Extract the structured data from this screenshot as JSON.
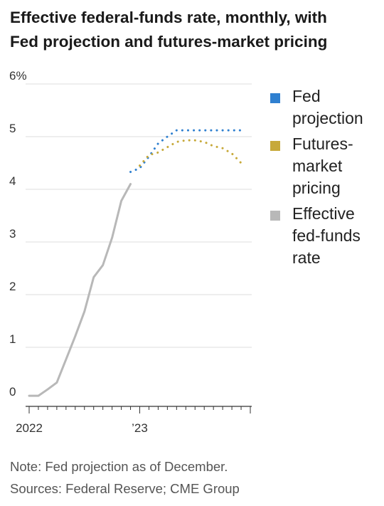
{
  "title_lines": [
    "Effective federal-funds rate, monthly, with",
    "Fed projection and futures-market pricing"
  ],
  "notes": {
    "note": "Note: Fed projection as of December.",
    "sources": "Sources: Federal Reserve; CME Group"
  },
  "legend": [
    {
      "label_lines": [
        "Fed",
        "projection"
      ],
      "color": "#2f80d0"
    },
    {
      "label_lines": [
        "Futures-",
        "market",
        "pricing"
      ],
      "color": "#c7a93a"
    },
    {
      "label_lines": [
        "Effective",
        "fed-funds",
        "rate"
      ],
      "color": "#b8b8b8"
    }
  ],
  "chart_data": {
    "type": "line",
    "title": "Effective federal-funds rate, monthly, with Fed projection and futures-market pricing",
    "xlabel": "",
    "ylabel": "",
    "ylim": [
      0,
      6
    ],
    "yticks": [
      {
        "value": 0,
        "label": "0"
      },
      {
        "value": 1,
        "label": "1"
      },
      {
        "value": 2,
        "label": "2"
      },
      {
        "value": 3,
        "label": "3"
      },
      {
        "value": 4,
        "label": "4"
      },
      {
        "value": 5,
        "label": "5"
      },
      {
        "value": 6,
        "label": "6%"
      }
    ],
    "xticks": [
      {
        "value": "2022-01",
        "label": "2022"
      },
      {
        "value": "2023-01",
        "label": "’23"
      }
    ],
    "xlim": [
      "2022-01",
      "2023-12"
    ],
    "grid": true,
    "legend_position": "right",
    "series": [
      {
        "name": "Effective fed-funds rate",
        "color": "#b8b8b8",
        "style": "solid",
        "points": [
          [
            "2022-01",
            0.08
          ],
          [
            "2022-02",
            0.08
          ],
          [
            "2022-03",
            0.2
          ],
          [
            "2022-04",
            0.33
          ],
          [
            "2022-05",
            0.77
          ],
          [
            "2022-06",
            1.21
          ],
          [
            "2022-07",
            1.68
          ],
          [
            "2022-08",
            2.33
          ],
          [
            "2022-09",
            2.56
          ],
          [
            "2022-10",
            3.08
          ],
          [
            "2022-11",
            3.78
          ],
          [
            "2022-12",
            4.1
          ]
        ]
      },
      {
        "name": "Fed projection",
        "color": "#2f80d0",
        "style": "dotted",
        "points": [
          [
            "2022-12",
            4.33
          ],
          [
            "2023-01",
            4.4
          ],
          [
            "2023-02",
            4.62
          ],
          [
            "2023-03",
            4.87
          ],
          [
            "2023-04",
            5.0
          ],
          [
            "2023-05",
            5.12
          ],
          [
            "2023-06",
            5.12
          ],
          [
            "2023-07",
            5.12
          ],
          [
            "2023-08",
            5.12
          ],
          [
            "2023-09",
            5.12
          ],
          [
            "2023-10",
            5.12
          ],
          [
            "2023-11",
            5.12
          ],
          [
            "2023-12",
            5.12
          ]
        ]
      },
      {
        "name": "Futures-market pricing",
        "color": "#c7a93a",
        "style": "dotted",
        "points": [
          [
            "2023-01",
            4.45
          ],
          [
            "2023-02",
            4.65
          ],
          [
            "2023-03",
            4.7
          ],
          [
            "2023-04",
            4.8
          ],
          [
            "2023-05",
            4.9
          ],
          [
            "2023-06",
            4.93
          ],
          [
            "2023-07",
            4.93
          ],
          [
            "2023-08",
            4.9
          ],
          [
            "2023-09",
            4.82
          ],
          [
            "2023-10",
            4.78
          ],
          [
            "2023-11",
            4.68
          ],
          [
            "2023-12",
            4.5
          ]
        ]
      }
    ]
  }
}
